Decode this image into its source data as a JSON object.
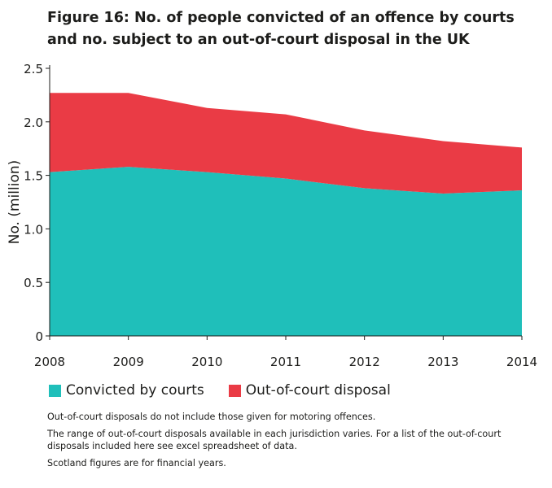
{
  "chart_data": {
    "type": "area",
    "stacked": true,
    "title": "Figure 16: No. of people convicted of an offence by courts and no. subject to an out-of-court disposal in the UK",
    "title_lines": [
      "Figure 16: No. of people convicted of an offence by courts",
      "and no. subject to an out-of-court disposal in the UK"
    ],
    "ylabel": "No. (million)",
    "xlabel": "",
    "x": [
      "2008",
      "2009",
      "2010",
      "2011",
      "2012",
      "2013",
      "2014"
    ],
    "ylim": [
      0,
      2.5
    ],
    "yticks": [
      "0",
      "0.5",
      "1.0",
      "1.5",
      "2.0",
      "2.5"
    ],
    "series": [
      {
        "name": "Convicted by courts",
        "color": "#1fbfba",
        "values": [
          1.53,
          1.58,
          1.53,
          1.47,
          1.38,
          1.33,
          1.36
        ]
      },
      {
        "name": "Out-of-court disposal",
        "color": "#ea3b45",
        "values": [
          0.74,
          0.69,
          0.6,
          0.6,
          0.54,
          0.49,
          0.4
        ]
      }
    ],
    "legend_position": "bottom-left",
    "grid": false
  },
  "notes": [
    "Out-of-court disposals do not include those given for motoring offences.",
    "The range of out-of-court disposals available in each jurisdiction varies. For a list of the out-of-court disposals included here see excel spreadsheet of data.",
    "Scotland figures are for financial years."
  ]
}
